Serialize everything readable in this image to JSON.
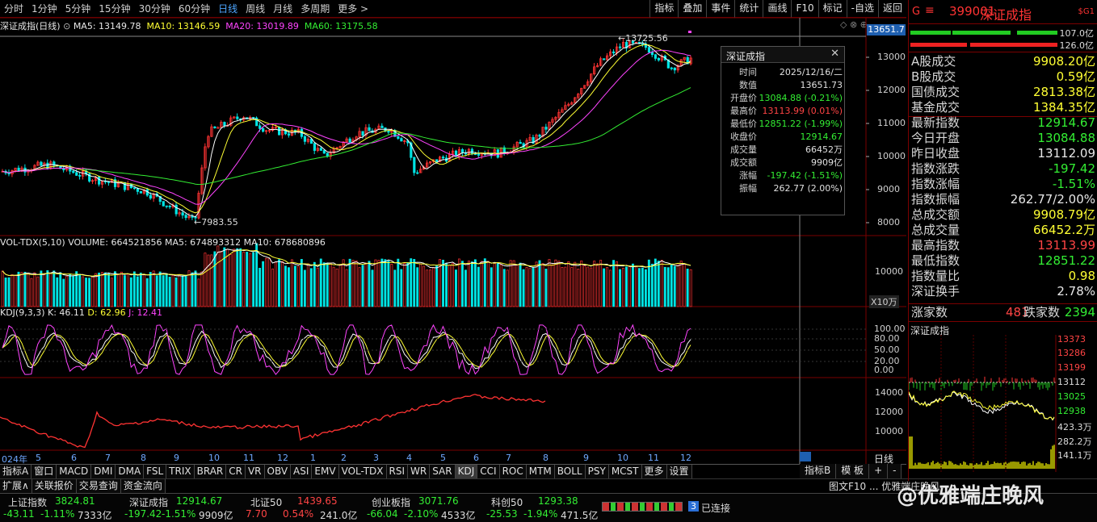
{
  "toolbar": {
    "timeframes": [
      "分时",
      "1分钟",
      "5分钟",
      "15分钟",
      "30分钟",
      "60分钟",
      "日线",
      "周线",
      "月线",
      "多周期",
      "更多 >"
    ],
    "active": "日线",
    "tools": [
      "指标",
      "叠加",
      "事件",
      "统计",
      "画线",
      "F10",
      "标记",
      "-自选",
      "返回"
    ]
  },
  "main_legend": {
    "title": "深证成指(日线)",
    "ma5": "MA5: 13149.78",
    "ma10": "MA10: 13146.59",
    "ma20": "MA20: 13019.89",
    "ma60": "MA60: 13175.58"
  },
  "price_axis": {
    "current": "13651.7",
    "ticks": [
      "13000",
      "12000",
      "11000",
      "10000",
      "9000",
      "8000"
    ]
  },
  "annotations": {
    "high": "13725.56",
    "low": "7983.55"
  },
  "tooltip": {
    "title": "深证成指",
    "rows": [
      {
        "l": "时间",
        "v": "2025/12/16/二",
        "c": "#e0e0e0"
      },
      {
        "l": "数值",
        "v": "13651.73",
        "c": "#e0e0e0"
      },
      {
        "l": "开盘价",
        "v": "13084.88 (-0.21%)",
        "c": "#33ee33"
      },
      {
        "l": "最高价",
        "v": "13113.99 (0.01%)",
        "c": "#ff4444"
      },
      {
        "l": "最低价",
        "v": "12851.22 (-1.99%)",
        "c": "#33ee33"
      },
      {
        "l": "收盘价",
        "v": "12914.67",
        "c": "#33ee33"
      },
      {
        "l": "成交量",
        "v": "66452万",
        "c": "#e0e0e0"
      },
      {
        "l": "成交额",
        "v": "9909亿",
        "c": "#e0e0e0"
      },
      {
        "l": "涨幅",
        "v": "-197.42 (-1.51%)",
        "c": "#33ee33"
      },
      {
        "l": "振幅",
        "v": "262.77 (2.00%)",
        "c": "#e0e0e0"
      }
    ]
  },
  "vol_legend": {
    "name": "VOL-TDX(5,10)",
    "volume": "VOLUME: 664521856",
    "ma5": "MA5: 674893312",
    "ma10": "MA10: 678680896"
  },
  "vol_axis": {
    "tick": "10000",
    "unit": "X10万"
  },
  "kdj_legend": {
    "name": "KDJ(9,3,3)",
    "k": "K: 46.11",
    "d": "D: 62.96",
    "j": "J: 12.41"
  },
  "kdj_axis": [
    "100.00",
    "80.00",
    "50.00",
    "20.00",
    "0.00"
  ],
  "sub_axis": [
    "14000",
    "12000",
    "10000"
  ],
  "dates": [
    "024年",
    "5",
    "6",
    "7",
    "8",
    "9",
    "10",
    "11",
    "12",
    "1",
    "2",
    "3",
    "4",
    "5",
    "6",
    "7",
    "8",
    "9",
    "10",
    "11",
    "12"
  ],
  "period_label": "日线",
  "indicator_tabs": [
    "指标A",
    "窗口",
    "MACD",
    "DMI",
    "DMA",
    "FSL",
    "TRIX",
    "BRAR",
    "CR",
    "VR",
    "OBV",
    "ASI",
    "EMV",
    "VOL-TDX",
    "RSI",
    "WR",
    "SAR",
    "KDJ",
    "CCI",
    "ROC",
    "MTM",
    "BOLL",
    "PSY",
    "MCST",
    "更多",
    "设置"
  ],
  "indicator_tabs_right": [
    "指标B",
    "模 板",
    "+",
    "-"
  ],
  "sub_tabs": [
    "扩展∧",
    "关联报价",
    "交易查询",
    "资金流向"
  ],
  "sub_tabs_right": "图文F10 ... 优雅端庄晚风",
  "right": {
    "code": "399001",
    "name": "深证成指",
    "flag": "G",
    "tag": "$G1",
    "bar_vals": [
      "107.0亿",
      "126.0亿"
    ],
    "rows": [
      {
        "l": "A股成交",
        "v": "9908.20亿",
        "c": "#ffff33"
      },
      {
        "l": "B股成交",
        "v": "0.59亿",
        "c": "#ffff33"
      },
      {
        "l": "国债成交",
        "v": "2813.38亿",
        "c": "#ffff33"
      },
      {
        "l": "基金成交",
        "v": "1384.35亿",
        "c": "#ffff33"
      },
      {
        "l": "最新指数",
        "v": "12914.67",
        "c": "#33ee33"
      },
      {
        "l": "今日开盘",
        "v": "13084.88",
        "c": "#33ee33"
      },
      {
        "l": "昨日收盘",
        "v": "13112.09",
        "c": "#e8e8e8"
      },
      {
        "l": "指数涨跌",
        "v": "-197.42",
        "c": "#33ee33"
      },
      {
        "l": "指数涨幅",
        "v": "-1.51%",
        "c": "#33ee33"
      },
      {
        "l": "指数振幅",
        "v": "262.77/2.00%",
        "c": "#e8e8e8"
      },
      {
        "l": "总成交额",
        "v": "9908.79亿",
        "c": "#ffff33"
      },
      {
        "l": "总成交量",
        "v": "66452.2万",
        "c": "#ffff33"
      },
      {
        "l": "最高指数",
        "v": "13113.99",
        "c": "#ff4444"
      },
      {
        "l": "最低指数",
        "v": "12851.22",
        "c": "#33ee33"
      },
      {
        "l": "指数量比",
        "v": "0.98",
        "c": "#ffff33"
      },
      {
        "l": "深证换手",
        "v": "2.78%",
        "c": "#e8e8e8"
      }
    ],
    "up_label": "涨家数",
    "up": "481",
    "down_label": "跌家数",
    "down": "2394",
    "mini_title": "深证成指",
    "mini_axis": [
      "13373",
      "13286",
      "13199",
      "13112",
      "13025",
      "12938",
      "423.3万",
      "282.2万",
      "141.1万"
    ]
  },
  "status": {
    "items": [
      {
        "name": "上证指数",
        "price": "3824.81",
        "chg": "-43.11",
        "pct": "-1.11%",
        "amt": "7333亿"
      },
      {
        "name": "深证成指",
        "price": "12914.67",
        "chg": "-197.42",
        "pct": "-1.51%",
        "amt": "9909亿"
      },
      {
        "name": "北证50",
        "price": "1439.65",
        "chg": "7.70",
        "pct": "0.54%",
        "amt": "241.0亿"
      },
      {
        "name": "创业板指",
        "price": "3071.76",
        "chg": "-66.04",
        "pct": "-2.10%",
        "amt": "4533亿"
      },
      {
        "name": "科创50",
        "price": "1293.38",
        "chg": "-25.53",
        "pct": "-1.94%",
        "amt": "471.5亿"
      }
    ],
    "conn_num": "3",
    "conn": "已连接",
    "watermark": "@优雅端庄晚风"
  }
}
